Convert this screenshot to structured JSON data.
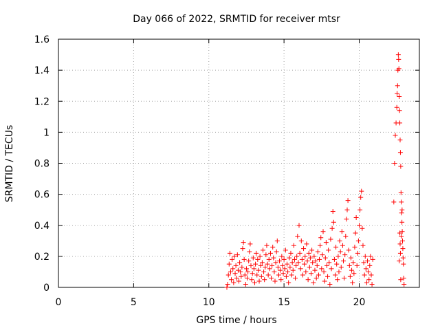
{
  "chart_data": {
    "type": "scatter",
    "title": "Day 066 of 2022, SRMTID for receiver mtsr",
    "xlabel": "GPS time / hours",
    "ylabel": "SRMTID / TECUs",
    "xlim": [
      0,
      24
    ],
    "ylim": [
      0,
      1.6
    ],
    "x_ticks": [
      0,
      5,
      10,
      15,
      20
    ],
    "y_ticks": [
      0,
      0.2,
      0.4,
      0.6,
      0.8,
      1.0,
      1.2,
      1.4,
      1.6
    ],
    "x_tick_labels": [
      "0",
      "5",
      "10",
      "15",
      "20"
    ],
    "y_tick_labels": [
      "0",
      "0.2",
      "0.4",
      "0.6",
      "0.8",
      "1",
      "1.2",
      "1.4",
      "1.6"
    ],
    "grid": true,
    "marker": "+",
    "series": [
      {
        "name": "SRMTID",
        "color": "#ff0000",
        "points": [
          [
            11.2,
            0.0
          ],
          [
            11.25,
            0.02
          ],
          [
            11.3,
            0.08
          ],
          [
            11.35,
            0.15
          ],
          [
            11.4,
            0.22
          ],
          [
            11.45,
            0.1
          ],
          [
            11.5,
            0.05
          ],
          [
            11.55,
            0.18
          ],
          [
            11.6,
            0.12
          ],
          [
            11.65,
            0.03
          ],
          [
            11.7,
            0.2
          ],
          [
            11.75,
            0.09
          ],
          [
            11.8,
            0.14
          ],
          [
            11.85,
            0.06
          ],
          [
            11.9,
            0.21
          ],
          [
            11.95,
            0.11
          ],
          [
            12.0,
            0.04
          ],
          [
            12.05,
            0.16
          ],
          [
            12.1,
            0.1
          ],
          [
            12.15,
            0.07
          ],
          [
            12.2,
            0.13
          ],
          [
            12.25,
            0.25
          ],
          [
            12.3,
            0.29
          ],
          [
            12.35,
            0.18
          ],
          [
            12.4,
            0.08
          ],
          [
            12.45,
            0.02
          ],
          [
            12.5,
            0.12
          ],
          [
            12.55,
            0.06
          ],
          [
            12.6,
            0.1
          ],
          [
            12.65,
            0.17
          ],
          [
            12.7,
            0.23
          ],
          [
            12.75,
            0.28
          ],
          [
            12.8,
            0.14
          ],
          [
            12.85,
            0.05
          ],
          [
            12.9,
            0.09
          ],
          [
            12.95,
            0.19
          ],
          [
            13.0,
            0.12
          ],
          [
            13.05,
            0.03
          ],
          [
            13.1,
            0.15
          ],
          [
            13.15,
            0.22
          ],
          [
            13.2,
            0.08
          ],
          [
            13.25,
            0.18
          ],
          [
            13.3,
            0.11
          ],
          [
            13.35,
            0.04
          ],
          [
            13.4,
            0.2
          ],
          [
            13.45,
            0.14
          ],
          [
            13.5,
            0.07
          ],
          [
            13.55,
            0.16
          ],
          [
            13.6,
            0.24
          ],
          [
            13.65,
            0.1
          ],
          [
            13.7,
            0.05
          ],
          [
            13.75,
            0.13
          ],
          [
            13.8,
            0.21
          ],
          [
            13.85,
            0.27
          ],
          [
            13.9,
            0.15
          ],
          [
            13.95,
            0.08
          ],
          [
            14.0,
            0.18
          ],
          [
            14.05,
            0.12
          ],
          [
            14.1,
            0.22
          ],
          [
            14.15,
            0.06
          ],
          [
            14.2,
            0.14
          ],
          [
            14.25,
            0.26
          ],
          [
            14.3,
            0.19
          ],
          [
            14.35,
            0.1
          ],
          [
            14.4,
            0.04
          ],
          [
            14.45,
            0.16
          ],
          [
            14.5,
            0.23
          ],
          [
            14.55,
            0.3
          ],
          [
            14.6,
            0.13
          ],
          [
            14.65,
            0.08
          ],
          [
            14.7,
            0.17
          ],
          [
            14.75,
            0.11
          ],
          [
            14.8,
            0.05
          ],
          [
            14.85,
            0.2
          ],
          [
            14.9,
            0.14
          ],
          [
            14.95,
            0.09
          ],
          [
            15.0,
            0.18
          ],
          [
            15.05,
            0.12
          ],
          [
            15.1,
            0.24
          ],
          [
            15.15,
            0.07
          ],
          [
            15.2,
            0.15
          ],
          [
            15.25,
            0.1
          ],
          [
            15.3,
            0.03
          ],
          [
            15.35,
            0.19
          ],
          [
            15.4,
            0.13
          ],
          [
            15.45,
            0.22
          ],
          [
            15.5,
            0.08
          ],
          [
            15.55,
            0.16
          ],
          [
            15.6,
            0.11
          ],
          [
            15.65,
            0.27
          ],
          [
            15.7,
            0.18
          ],
          [
            15.75,
            0.06
          ],
          [
            15.8,
            0.14
          ],
          [
            15.85,
            0.2
          ],
          [
            15.9,
            0.33
          ],
          [
            15.95,
            0.16
          ],
          [
            16.0,
            0.4
          ],
          [
            16.05,
            0.22
          ],
          [
            16.1,
            0.12
          ],
          [
            16.15,
            0.3
          ],
          [
            16.2,
            0.18
          ],
          [
            16.25,
            0.08
          ],
          [
            16.3,
            0.25
          ],
          [
            16.35,
            0.15
          ],
          [
            16.4,
            0.2
          ],
          [
            16.45,
            0.1
          ],
          [
            16.5,
            0.28
          ],
          [
            16.55,
            0.17
          ],
          [
            16.6,
            0.05
          ],
          [
            16.65,
            0.22
          ],
          [
            16.7,
            0.13
          ],
          [
            16.75,
            0.19
          ],
          [
            16.8,
            0.09
          ],
          [
            16.85,
            0.24
          ],
          [
            16.9,
            0.16
          ],
          [
            16.95,
            0.03
          ],
          [
            17.0,
            0.2
          ],
          [
            17.05,
            0.11
          ],
          [
            17.1,
            0.17
          ],
          [
            17.15,
            0.06
          ],
          [
            17.2,
            0.14
          ],
          [
            17.25,
            0.23
          ],
          [
            17.3,
            0.08
          ],
          [
            17.35,
            0.18
          ],
          [
            17.4,
            0.27
          ],
          [
            17.45,
            0.32
          ],
          [
            17.5,
            0.12
          ],
          [
            17.55,
            0.21
          ],
          [
            17.6,
            0.36
          ],
          [
            17.65,
            0.1
          ],
          [
            17.7,
            0.04
          ],
          [
            17.75,
            0.19
          ],
          [
            17.8,
            0.29
          ],
          [
            17.85,
            0.14
          ],
          [
            17.9,
            0.07
          ],
          [
            17.95,
            0.24
          ],
          [
            18.0,
            0.16
          ],
          [
            18.05,
            0.02
          ],
          [
            18.1,
            0.31
          ],
          [
            18.15,
            0.12
          ],
          [
            18.2,
            0.38
          ],
          [
            18.25,
            0.49
          ],
          [
            18.3,
            0.42
          ],
          [
            18.35,
            0.18
          ],
          [
            18.4,
            0.08
          ],
          [
            18.45,
            0.26
          ],
          [
            18.5,
            0.15
          ],
          [
            18.55,
            0.05
          ],
          [
            18.6,
            0.2
          ],
          [
            18.65,
            0.1
          ],
          [
            18.7,
            0.3
          ],
          [
            18.75,
            0.23
          ],
          [
            18.8,
            0.13
          ],
          [
            18.85,
            0.36
          ],
          [
            18.9,
            0.27
          ],
          [
            18.95,
            0.17
          ],
          [
            19.0,
            0.06
          ],
          [
            19.05,
            0.21
          ],
          [
            19.1,
            0.33
          ],
          [
            19.15,
            0.44
          ],
          [
            19.2,
            0.5
          ],
          [
            19.25,
            0.56
          ],
          [
            19.3,
            0.24
          ],
          [
            19.35,
            0.14
          ],
          [
            19.4,
            0.07
          ],
          [
            19.45,
            0.19
          ],
          [
            19.5,
            0.11
          ],
          [
            19.55,
            0.03
          ],
          [
            19.6,
            0.16
          ],
          [
            19.65,
            0.09
          ],
          [
            19.7,
            0.26
          ],
          [
            19.75,
            0.35
          ],
          [
            19.8,
            0.45
          ],
          [
            19.85,
            0.14
          ],
          [
            19.9,
            0.22
          ],
          [
            19.95,
            0.3
          ],
          [
            20.0,
            0.4
          ],
          [
            20.05,
            0.5
          ],
          [
            20.1,
            0.58
          ],
          [
            20.15,
            0.62
          ],
          [
            20.2,
            0.38
          ],
          [
            20.25,
            0.27
          ],
          [
            20.3,
            0.16
          ],
          [
            20.35,
            0.08
          ],
          [
            20.4,
            0.2
          ],
          [
            20.45,
            0.12
          ],
          [
            20.5,
            0.03
          ],
          [
            20.55,
            0.17
          ],
          [
            20.6,
            0.1
          ],
          [
            20.65,
            0.05
          ],
          [
            20.7,
            0.14
          ],
          [
            20.75,
            0.2
          ],
          [
            20.8,
            0.08
          ],
          [
            20.85,
            0.02
          ],
          [
            20.9,
            0.18
          ],
          [
            22.3,
            0.55
          ],
          [
            22.35,
            0.8
          ],
          [
            22.4,
            0.98
          ],
          [
            22.45,
            1.06
          ],
          [
            22.5,
            1.16
          ],
          [
            22.52,
            1.25
          ],
          [
            22.55,
            1.3
          ],
          [
            22.57,
            1.4
          ],
          [
            22.6,
            1.5
          ],
          [
            22.62,
            1.47
          ],
          [
            22.64,
            1.41
          ],
          [
            22.66,
            1.23
          ],
          [
            22.68,
            1.14
          ],
          [
            22.7,
            1.06
          ],
          [
            22.72,
            0.95
          ],
          [
            22.74,
            0.87
          ],
          [
            22.76,
            0.78
          ],
          [
            22.78,
            0.61
          ],
          [
            22.8,
            0.55
          ],
          [
            22.82,
            0.48
          ],
          [
            22.84,
            0.42
          ],
          [
            22.86,
            0.36
          ],
          [
            22.88,
            0.3
          ],
          [
            22.9,
            0.25
          ],
          [
            22.92,
            0.19
          ],
          [
            22.94,
            0.15
          ],
          [
            22.96,
            0.06
          ],
          [
            22.98,
            0.02
          ],
          [
            22.7,
            0.35
          ],
          [
            22.72,
            0.28
          ],
          [
            22.74,
            0.22
          ],
          [
            22.76,
            0.05
          ],
          [
            22.85,
            0.5
          ],
          [
            22.8,
            0.33
          ],
          [
            22.66,
            0.17
          ]
        ]
      }
    ]
  }
}
